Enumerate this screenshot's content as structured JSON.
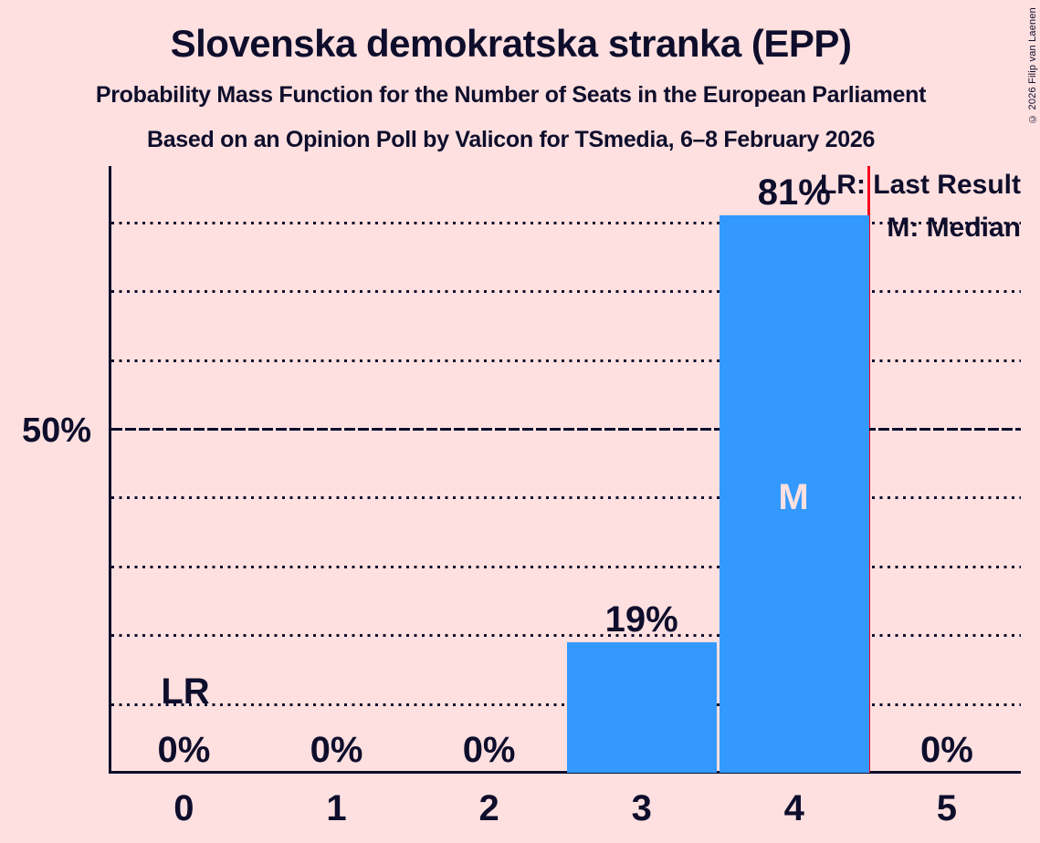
{
  "chart_data": {
    "type": "bar",
    "title": "Slovenska demokratska stranka (EPP)",
    "subtitle": "Probability Mass Function for the Number of Seats in the European Parliament",
    "source_line": "Based on an Opinion Poll by Valicon for TSmedia, 6–8 February 2026",
    "copyright": "© 2026 Filip van Laenen",
    "categories": [
      "0",
      "1",
      "2",
      "3",
      "4",
      "5"
    ],
    "values": [
      0,
      0,
      0,
      19,
      81,
      0
    ],
    "value_labels": [
      "0%",
      "0%",
      "0%",
      "19%",
      "81%",
      "0%"
    ],
    "xlabel": "",
    "ylabel": "",
    "ylim": [
      0,
      88
    ],
    "y_axis_label": "50%",
    "y_major_line_pct": 50,
    "y_gridlines_pct": [
      10,
      20,
      30,
      40,
      60,
      70,
      80
    ],
    "grid": "dotted horizontal lines every 10%",
    "legend_position": "top-right",
    "legend": {
      "lr": "LR: Last Result",
      "m": "M: Median"
    },
    "median": {
      "seat": "4",
      "marker": "M"
    },
    "last_result": {
      "seat": "0",
      "marker": "LR"
    },
    "red_line_at_x": 4.5,
    "colors": {
      "background": "#FFE0E0",
      "bar": "#3399FF",
      "ink": "#0E0E2C",
      "last_result_line": "#F5001D",
      "median_marker_text": "#FFE0E0"
    }
  }
}
